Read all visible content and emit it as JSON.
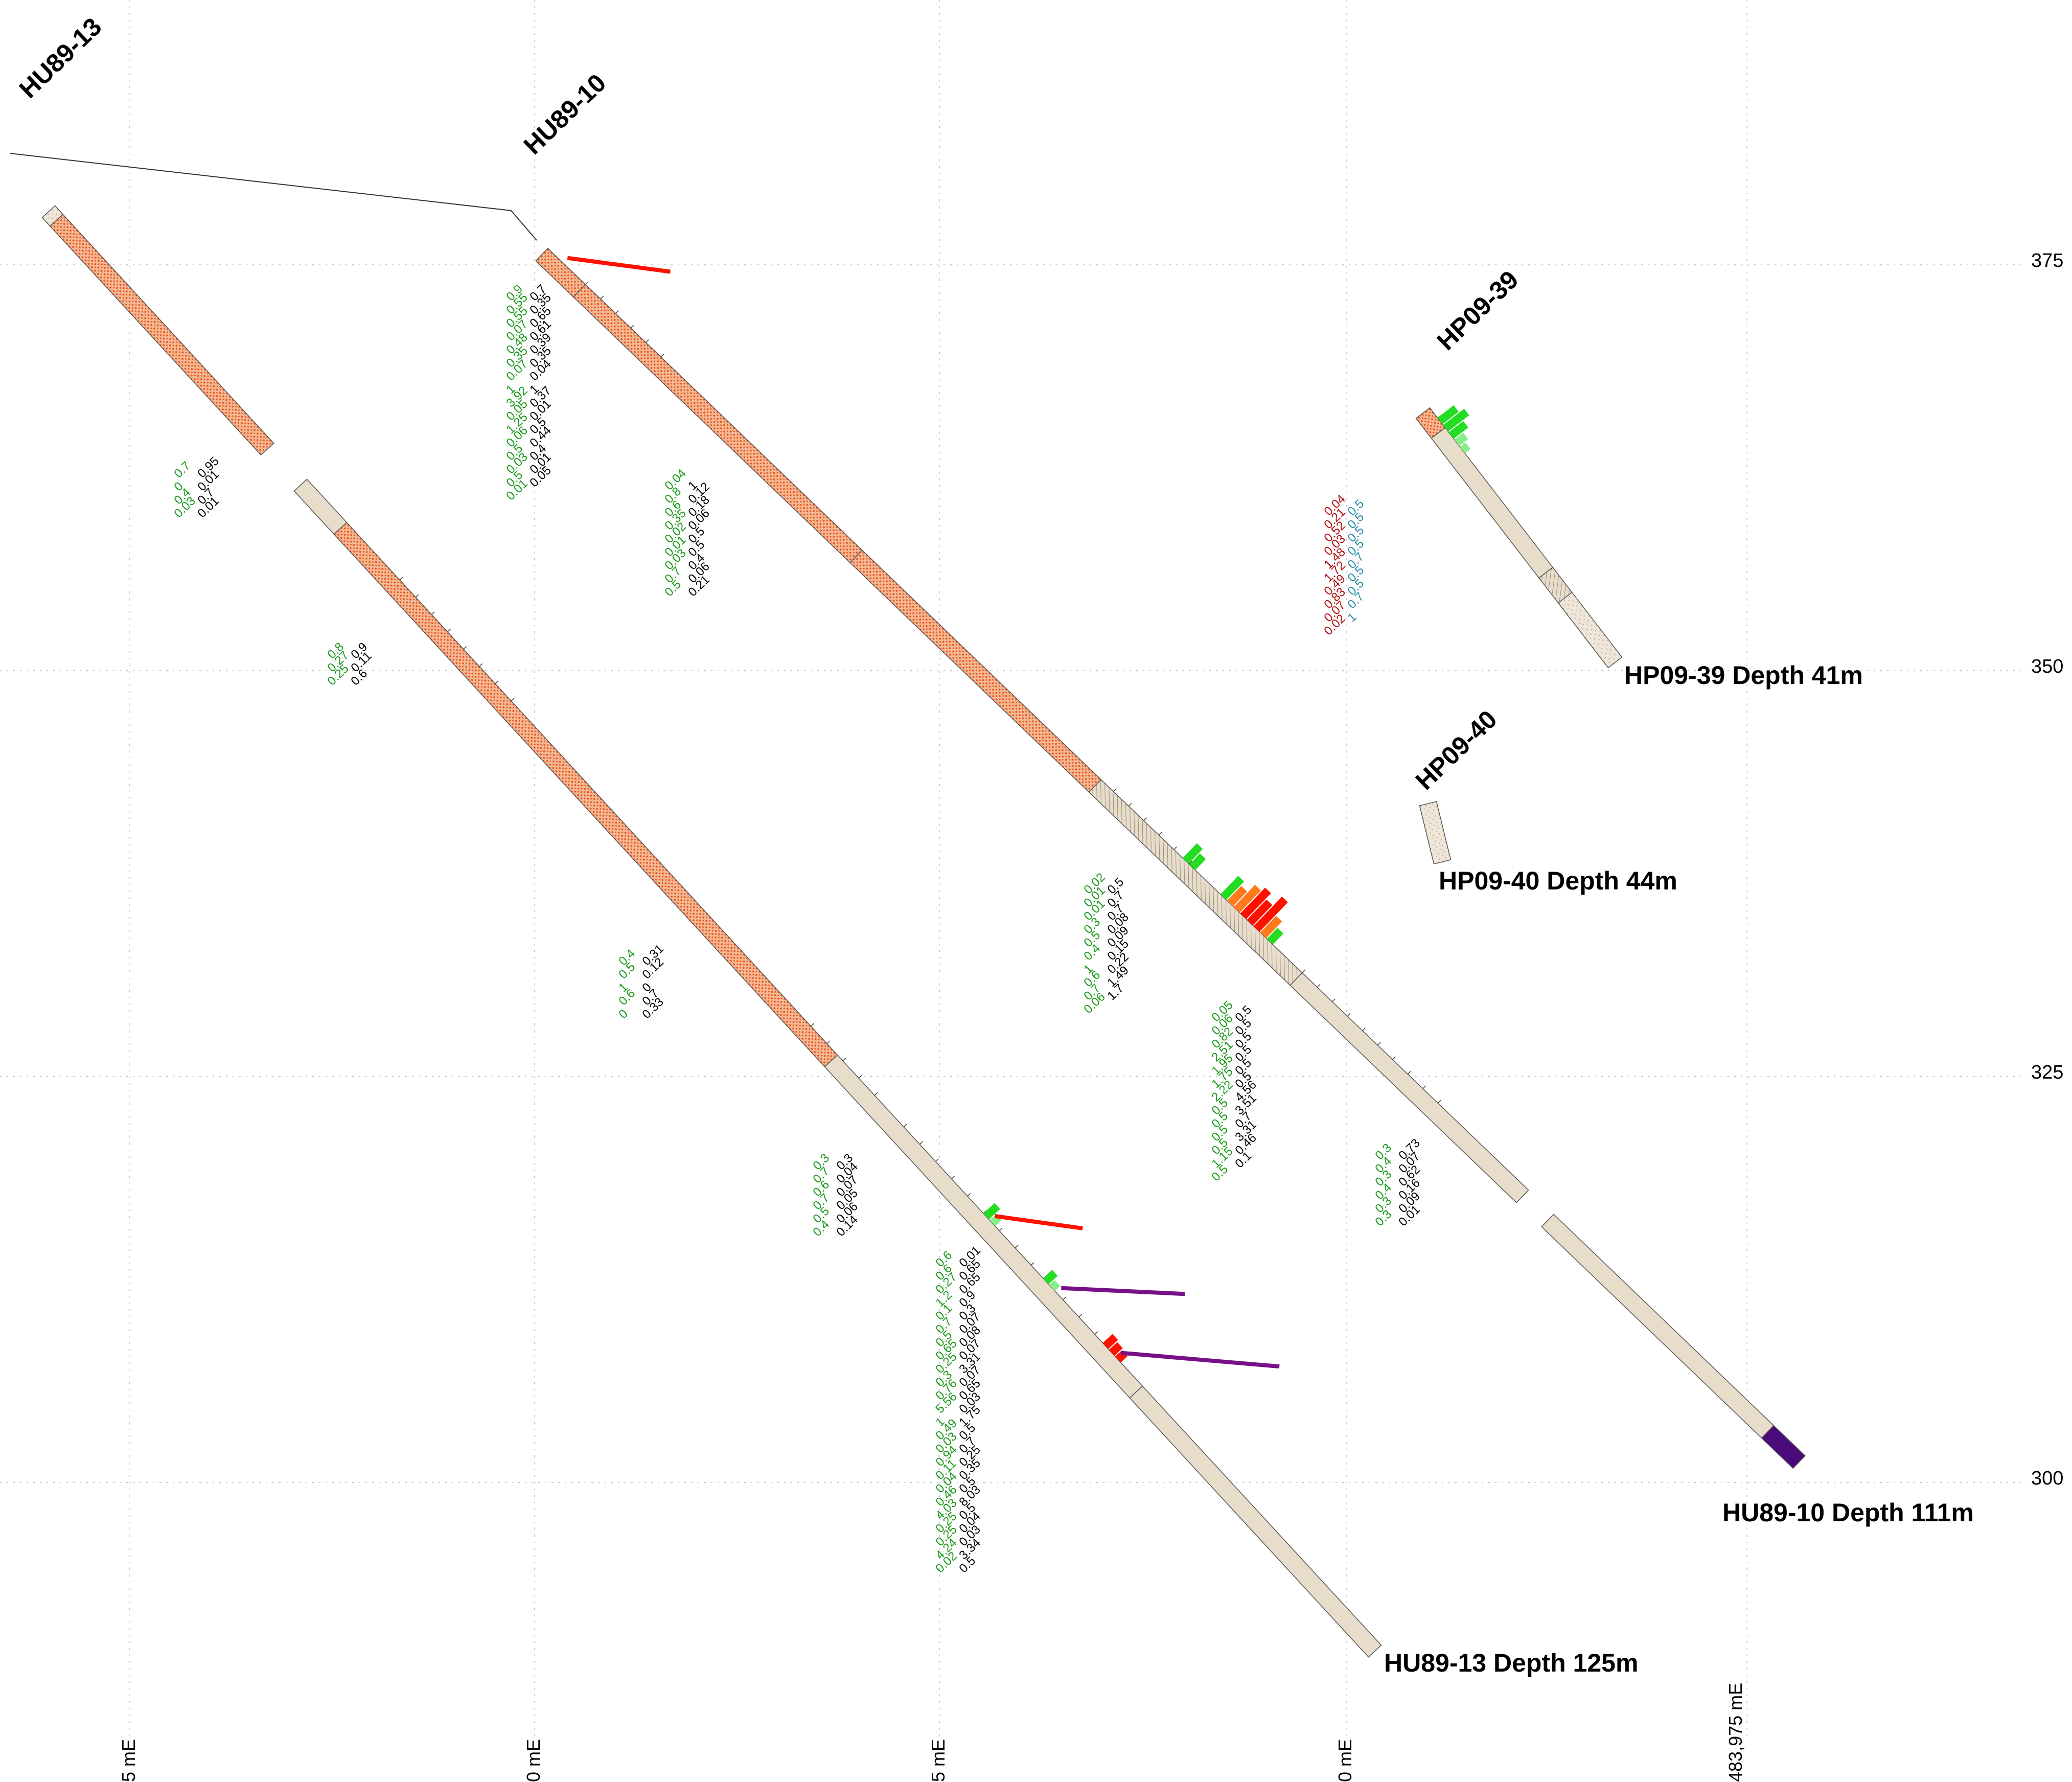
{
  "elevations": [
    "375",
    "350",
    "325",
    "300"
  ],
  "eastings": [
    "5 mE",
    "0 mE",
    "5 mE",
    "0 mE",
    "483,975 mE"
  ],
  "holes": [
    {
      "name": "HU89-13",
      "depth_label": "HU89-13  Depth 125m"
    },
    {
      "name": "HU89-10",
      "depth_label": "HU89-10  Depth 111m"
    },
    {
      "name": "HP09-39",
      "depth_label": "HP09-39  Depth 41m"
    },
    {
      "name": "HP09-40",
      "depth_label": "HP09-40  Depth 44m"
    }
  ],
  "colors": {
    "intrusive_fill": "#f4b894",
    "intrusive_dot": "#e8541c",
    "sediment_fill": "#e8dccb",
    "bar_green": "#22dd22",
    "bar_light_green": "#88ee88",
    "bar_red": "#ff1100",
    "bar_orange": "#ff7a1a",
    "bar_purple": "#771188",
    "end_cap": "#4a0a7a",
    "text_red": "#b01010",
    "text_green": "#1a9a1a",
    "text_teal": "#2a8aa8",
    "text_grey": "#707070",
    "text_purple": "#8a1a9a",
    "grid": "#c8c8c8"
  },
  "assays": {
    "hu13_a": [
      "0.7",
      "0.95",
      "0",
      "0.01",
      "0.4",
      "0.7",
      "0.03",
      "0.01"
    ],
    "hu13_b": [
      "0.8",
      "0.9",
      "0.27",
      "0.11",
      "0.25",
      "0.6"
    ],
    "hu13_c": [
      "0.4",
      "0.31",
      "0.5",
      "0.12",
      "1",
      "0",
      "0.6",
      "0.7",
      "0",
      "0.33"
    ],
    "hu13_d": [
      "0.3",
      "0.3",
      "0.7",
      "0.04",
      "0.6",
      "0.07",
      "0.7",
      "0.05",
      "0.5",
      "0.06",
      "0.4",
      "0.14"
    ],
    "hu13_e": [
      "0.6",
      "0.01",
      "0.6",
      "0.65",
      "0.27",
      "0.65",
      "1.2",
      "0.9",
      "0.1",
      "0.3",
      "0.7",
      "0.07",
      "0.5",
      "0.08",
      "0.65",
      "0.07",
      "0.25",
      "3.31",
      "0.3",
      "0.07",
      "0.76",
      "0.65",
      "5.56",
      "0.03",
      "1",
      "1.75",
      "0.49",
      "0.5",
      "0.03",
      "0.7",
      "0.94",
      "0.25",
      "0.11",
      "0.35",
      "0.04",
      "0.5",
      "0.46",
      "8.03",
      "4.03",
      "0.5",
      "0.25",
      "0.04",
      "0.25",
      "0.03",
      "4.24",
      "3.34",
      "0.02",
      "0.5"
    ],
    "hu10_a": [
      "0.9",
      "0.7",
      "0.55",
      "0.35",
      "0.55",
      "0.65",
      "0.07",
      "0.61",
      "0.48",
      "0.39",
      "0.35",
      "0.35",
      "0.07",
      "0.04",
      "1",
      "1",
      "3.92",
      "0.37",
      "0.05",
      "0.01",
      "1.25",
      "0.5",
      "0.06",
      "0.44",
      "0.5",
      "0.4",
      "0.03",
      "0.01",
      "0.5",
      "0.05",
      "0.01"
    ],
    "hu10_b": [
      "0.04",
      "1",
      "0.8",
      "0.12",
      "0.6",
      "0.18",
      "0.35",
      "0.06",
      "0.02",
      "0.5",
      "0.01",
      "0.5",
      "0.03",
      "0.4",
      "0.7",
      "0.06",
      "0.5",
      "0.21"
    ],
    "hu10_c": [
      "0.02",
      "0.5",
      "0.01",
      "0.7",
      "0.01",
      "0.7",
      "0.3",
      "0.08",
      "0.5",
      "0.09",
      "0.4",
      "0.15",
      "1",
      "0.22",
      "0.6",
      "1.49",
      "0.7",
      "1.7",
      "0.06"
    ],
    "hu10_d": [
      "0.05",
      "0.5",
      "0.06",
      "0.5",
      "0.82",
      "0.5",
      "2.51",
      "0.5",
      "1.95",
      "0.5",
      "1.75",
      "0.5",
      "2.22",
      "4.56",
      "0.5",
      "3.51",
      "0.5",
      "0.7",
      "0.5",
      "3.31",
      "0.5",
      "0.46",
      "1.15",
      "0.1",
      "0.5"
    ],
    "hu10_e": [
      "0.3",
      "0.73",
      "0.4",
      "0.07",
      "0.3",
      "0.62",
      "0.4",
      "0.16",
      "0.3",
      "0.09",
      "0.3",
      "0.01"
    ],
    "hp39": [
      "0.04",
      "0.5",
      "0.21",
      "0.5",
      "0.52",
      "0.5",
      "0.03",
      "0.5",
      "1.48",
      "0.7",
      "1.72",
      "0.5",
      "0.49",
      "0.5",
      "0.83",
      "0.7",
      "0.07",
      "1",
      "0.02"
    ]
  }
}
